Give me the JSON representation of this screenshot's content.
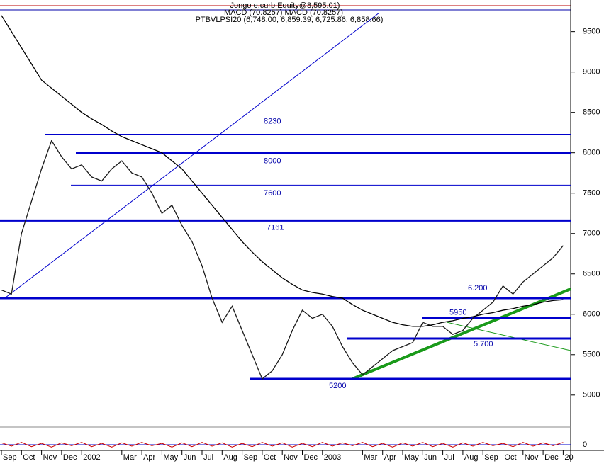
{
  "header": {
    "line1": "Jongo e.curb Equity@8,595.01)",
    "line2": "MACD (70.8257) MACD (70.8257)",
    "line3": "PTBVLPSI20 (6,748.00, 6,859.39, 6,725.86, 6,858.66)"
  },
  "chart_data": [
    {
      "type": "line",
      "categories": [
        "Sep",
        null,
        "Oct",
        null,
        "Nov",
        null,
        "Dec",
        null,
        "2002",
        null,
        null,
        null,
        "Mar",
        null,
        "Apr",
        null,
        "May",
        null,
        "Jun",
        null,
        "Jul",
        null,
        "Aug",
        null,
        "Sep",
        null,
        "Oct",
        null,
        "Nov",
        null,
        "Dec",
        null,
        "2003",
        null,
        null,
        null,
        "Mar",
        null,
        "Apr",
        null,
        "May",
        null,
        "Jun",
        null,
        "Jul",
        null,
        "Aug",
        null,
        "Sep",
        null,
        "Oct",
        null,
        "Nov",
        null,
        "Dec",
        null,
        "20"
      ],
      "series": [
        {
          "name": "PTBVLPSI20",
          "color": "#1a1a1a",
          "values": [
            6300,
            6250,
            7000,
            7400,
            7800,
            8150,
            7950,
            7800,
            7850,
            7700,
            7650,
            7800,
            7900,
            7750,
            7700,
            7500,
            7250,
            7350,
            7100,
            6900,
            6600,
            6200,
            5900,
            6100,
            5800,
            5500,
            5200,
            5300,
            5500,
            5800,
            6050,
            5950,
            6000,
            5850,
            5600,
            5400,
            5250,
            5350,
            5450,
            5550,
            5600,
            5650,
            5900,
            5850,
            5850,
            5750,
            5800,
            5950,
            6050,
            6150,
            6350,
            6250,
            6400,
            6500,
            6600,
            6700,
            6850
          ]
        },
        {
          "name": "MA",
          "color": "#000000",
          "values": [
            9700,
            9500,
            9300,
            9100,
            8900,
            8800,
            8700,
            8600,
            8500,
            8420,
            8350,
            8270,
            8200,
            8150,
            8100,
            8050,
            8000,
            7900,
            7800,
            7650,
            7500,
            7350,
            7200,
            7050,
            6900,
            6770,
            6650,
            6550,
            6450,
            6370,
            6300,
            6270,
            6250,
            6220,
            6200,
            6120,
            6050,
            6000,
            5950,
            5900,
            5870,
            5850,
            5850,
            5870,
            5900,
            5920,
            5950,
            5970,
            6000,
            6020,
            6050,
            6070,
            6100,
            6120,
            6150,
            6170,
            6180
          ]
        }
      ],
      "ylim": [
        4630,
        9760
      ],
      "yticks": [
        5000,
        5500,
        6000,
        6500,
        7000,
        7500,
        8000,
        8500,
        9000,
        9500
      ],
      "levels": [
        {
          "value": 8230,
          "label": "8230"
        },
        {
          "value": 8000,
          "label": "8000"
        },
        {
          "value": 7600,
          "label": "7600"
        },
        {
          "value": 7161,
          "label": "7161"
        },
        {
          "value": 6200,
          "label": "6.200"
        },
        {
          "value": 5950,
          "label": "5950"
        },
        {
          "value": 5700,
          "label": "5.700"
        },
        {
          "value": 5200,
          "label": "5200"
        }
      ]
    },
    {
      "type": "line",
      "series": [
        {
          "name": "Oscillator",
          "color": "#cc0000",
          "values": [
            40,
            -30,
            50,
            -40,
            30,
            -50,
            40,
            -20,
            50,
            -40,
            30,
            -50,
            40,
            -30,
            50,
            -20,
            30,
            -50,
            40,
            -40,
            50,
            -30,
            40,
            -50,
            30,
            -40,
            50,
            -30,
            40,
            -50,
            30,
            -40,
            50,
            -30,
            40,
            -20,
            50,
            -40,
            30,
            -50,
            40,
            -30,
            50,
            -40,
            30,
            -50,
            40,
            -30,
            50,
            -20,
            30,
            -40,
            50,
            -30,
            40,
            -20,
            50
          ]
        }
      ],
      "ylim": [
        -150,
        150
      ],
      "yticks": [
        0
      ]
    }
  ]
}
